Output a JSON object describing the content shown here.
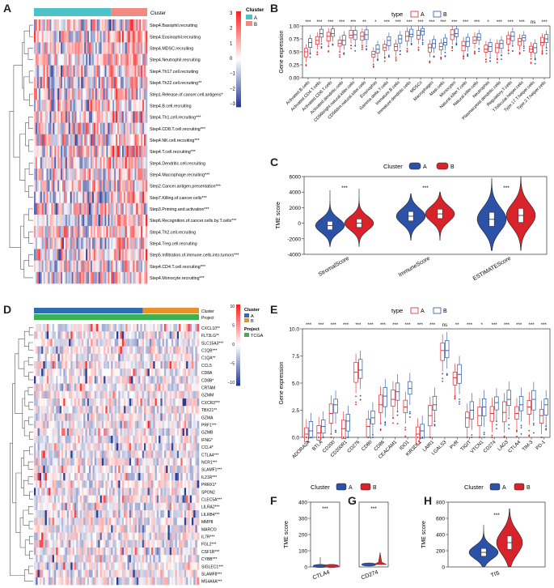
{
  "panels": {
    "A": "A",
    "B": "B",
    "C": "C",
    "D": "D",
    "E": "E",
    "F": "F",
    "G": "G",
    "H": "H"
  },
  "colors": {
    "A": "#2B52A6",
    "B": "#D8232A",
    "clusterA": "#4DC3C8",
    "clusterB": "#F08A82",
    "high": "#E52626",
    "low": "#2A3F96",
    "projectBar": "#3CB054",
    "clusterD_A": "#2E6DB4",
    "clusterD_B": "#E8922A"
  },
  "heatmapA": {
    "legend_title": "Cluster",
    "legend_items": [
      "A",
      "B"
    ],
    "scale_ticks": [
      "3",
      "2",
      "1",
      "0",
      "−1",
      "−2",
      "−3"
    ],
    "row_labels": [
      "Step4.Basophil.recruiting",
      "Step4.Eosinophil.recruiting",
      "Step4.MDSC.recruiting",
      "Step4.Neutrophil.recruiting",
      "Step4.Th17.cell.recruiting",
      "Step4.Th22.cell.recruiting**",
      "Step1.Release.of.cancer.cell.antigens*",
      "Step4.B.cell.recruiting",
      "Step4.Th1.cell.recruiting***",
      "Step4.CD8.T.cell.recruiting***",
      "Step4.NK.cell.recruiting***",
      "Step4.T.cell.recruiting***",
      "Step4.Dendritic.cell.recruiting",
      "Step4.Macrophage.recruiting***",
      "Step2.Cancer.antigen.presentation***",
      "Step7.Killing.of.cancer.cells***",
      "Step3.Priming.and.activation***",
      "Step6.Recognition.of.cancer.cells.by.T.cells***",
      "Step4.Th2.cell.recruiting",
      "Step4.Treg.cell.recruiting",
      "Step5.Infiltration.of.immune.cells.into.tumors***",
      "Step4.CD4.T.cell.recruiting***",
      "Step4.Monocyte.recruiting***"
    ]
  },
  "chart_data": [
    {
      "panel": "B",
      "type": "box",
      "legend_title": "type",
      "series": [
        "A",
        "B"
      ],
      "ylabel": "Gene expression",
      "ylim": [
        0,
        1.0
      ],
      "yticks": [
        "0.00",
        "0.25",
        "0.50",
        "0.75",
        "1.00"
      ],
      "categories": [
        "Activated.B.cells",
        "Activated.CD4.T.cells",
        "Activated.CD8.T.cells",
        "Activated.dendritic.cells",
        "CD56bright.natural.killer.cells",
        "CD56dim.natural.killer.cells",
        "Eosinophils",
        "Gamma.delta.T.cells",
        "Immature.B.cells",
        "Immature.dendritic.cells",
        "MDSCs",
        "Macrophages",
        "Mast.cells",
        "Monocytes",
        "Natural.killer.T.cells",
        "Natural.killer.cells",
        "Neutrophils",
        "Plasmacytoid.dendritic.cells",
        "Regulatory.T.cells",
        "T.follicular.helper.cells",
        "Type.17.T.helper.cells",
        "Type.2.T.helper.cells"
      ],
      "significance": [
        "***",
        "***",
        "***",
        "***",
        "***",
        "**",
        "*",
        "***",
        "***",
        "***",
        "***",
        "***",
        "***",
        "***",
        "***",
        "***",
        "*",
        "***",
        "***",
        "***",
        "ns",
        "***"
      ],
      "medians_A": [
        0.5,
        0.72,
        0.8,
        0.66,
        0.82,
        0.8,
        0.45,
        0.58,
        0.6,
        0.8,
        0.82,
        0.58,
        0.6,
        0.83,
        0.62,
        0.72,
        0.55,
        0.58,
        0.75,
        0.7,
        0.55,
        0.68
      ],
      "medians_B": [
        0.68,
        0.85,
        0.85,
        0.72,
        0.83,
        0.83,
        0.55,
        0.72,
        0.75,
        0.84,
        0.9,
        0.66,
        0.68,
        0.85,
        0.7,
        0.78,
        0.6,
        0.66,
        0.8,
        0.77,
        0.58,
        0.75
      ]
    },
    {
      "panel": "C",
      "type": "violin",
      "legend_title": "Cluster",
      "series": [
        "A",
        "B"
      ],
      "ylabel": "TME score",
      "ylim": [
        -4000,
        6000
      ],
      "yticks": [
        "6000",
        "4000",
        "2000",
        "0",
        "-2000",
        "-4000"
      ],
      "categories": [
        "StromalScore",
        "ImmuneScore",
        "ESTIMATEScore"
      ],
      "significance": [
        "***",
        "***",
        "***"
      ],
      "medians_A": [
        -300,
        900,
        500
      ],
      "medians_B": [
        0,
        1200,
        1000
      ]
    },
    {
      "panel": "E",
      "type": "box",
      "legend_title": "type",
      "series": [
        "A",
        "B"
      ],
      "ylabel": "Gene expression",
      "ylim": [
        0,
        10
      ],
      "yticks": [
        "10.0",
        "7.5",
        "5.0",
        "2.5",
        "0.0"
      ],
      "categories": [
        "ADORA2A",
        "BTLA",
        "CD200",
        "CD200R1",
        "CD276",
        "CD80",
        "CD86",
        "CEACAM1",
        "IDO1",
        "KIR3DL1",
        "LAIR1",
        "LGALS3",
        "PVR",
        "TIGIT",
        "VTCN1",
        "CD274",
        "LAG3",
        "CTLA4",
        "TIM-3",
        "PD-1"
      ],
      "significance": [
        "***",
        "***",
        "***",
        "***",
        "***",
        "***",
        "***",
        "***",
        "***",
        "***",
        "***",
        "ns",
        "**",
        "***",
        "*",
        "***",
        "***",
        "***",
        "***",
        "***"
      ],
      "medians_A": [
        0.3,
        0.4,
        2.2,
        0.8,
        6.0,
        1.0,
        3.0,
        3.5,
        2.8,
        0.3,
        2.0,
        8.0,
        5.5,
        1.8,
        2.0,
        2.2,
        2.3,
        2.2,
        2.8,
        2.0
      ],
      "medians_B": [
        0.6,
        1.0,
        3.0,
        1.5,
        6.2,
        1.8,
        3.8,
        4.2,
        4.5,
        0.6,
        3.0,
        8.0,
        5.8,
        2.5,
        2.8,
        3.2,
        3.5,
        3.0,
        3.5,
        3.0
      ]
    },
    {
      "panel": "F",
      "type": "violin",
      "legend_title": "Cluster",
      "series": [
        "A",
        "B"
      ],
      "ylabel": "TME score",
      "ylim": [
        0,
        400
      ],
      "yticks": [
        "400",
        "300",
        "200",
        "100",
        "0"
      ],
      "categories": [
        "CTLA4"
      ],
      "significance": [
        "***"
      ]
    },
    {
      "panel": "G",
      "type": "violin",
      "categories": [
        "CD274"
      ],
      "significance": [
        "***"
      ]
    },
    {
      "panel": "H",
      "type": "violin",
      "legend_title": "Cluster",
      "series": [
        "A",
        "B"
      ],
      "ylabel": "TME score",
      "ylim": [
        0,
        800
      ],
      "yticks": [
        "800",
        "600",
        "400",
        "200",
        "0"
      ],
      "categories": [
        "TIS"
      ],
      "significance": [
        "***"
      ],
      "medians_A": [
        180
      ],
      "medians_B": [
        300
      ]
    }
  ],
  "heatmapD": {
    "legend_cluster_title": "Cluster",
    "legend_cluster_items": [
      "A",
      "B"
    ],
    "legend_project_title": "Project",
    "legend_project_items": [
      "TCGA"
    ],
    "track_labels": [
      "Cluster",
      "Project"
    ],
    "scale_ticks": [
      "10",
      "5",
      "0",
      "−5",
      "−10"
    ],
    "row_labels": [
      "CXCL10**",
      "FLT3LG**",
      "SLC15A3***",
      "C1QB***",
      "C1QA**",
      "CCL5",
      "CD8A",
      "CD8B*",
      "CRTAM",
      "GZMM",
      "CXCR3***",
      "TBX21**",
      "GZMA",
      "PRF1***",
      "GZMB",
      "IFNG*",
      "CCL4*",
      "CTLA4***",
      "NCR1***",
      "SLAMF1***",
      "IL21R***",
      "PRRX1*",
      "SPON2",
      "CLEC5A***",
      "LILRA2***",
      "LILRB4***",
      "MMP8",
      "MARCO",
      "IL7R***",
      "FGL2***",
      "CSF1R***",
      "CYBB***",
      "SIGLEC1***",
      "SLAMF8***",
      "MS4A6A***"
    ]
  }
}
